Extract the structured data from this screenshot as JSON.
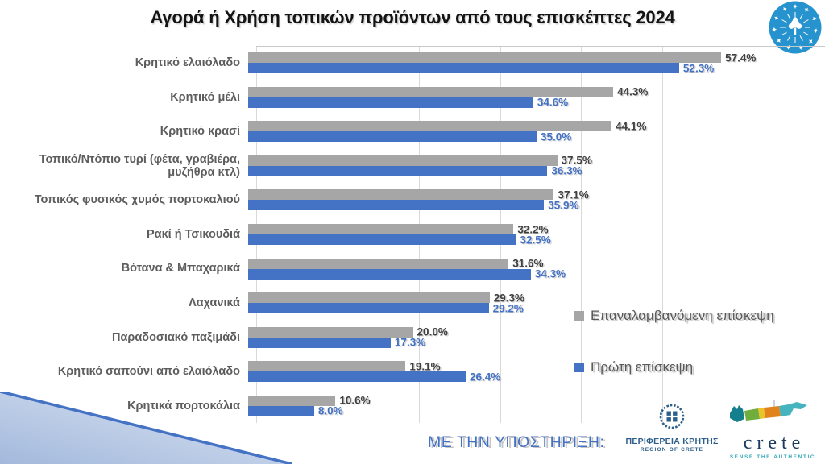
{
  "title": "Αγορά ή Χρήση τοπικών προϊόντων από τους επισκέπτες 2024",
  "chart_data": {
    "type": "bar",
    "orientation": "horizontal",
    "title": "Αγορά ή Χρήση τοπικών προϊόντων από τους επισκέπτες 2024",
    "categories": [
      "Κρητικό ελαιόλαδο",
      "Κρητικό μέλι",
      "Κρητικό κρασί",
      "Τοπικό/Ντόπιο τυρί (φέτα, γραβιέρα, μυζήθρα κτλ)",
      "Τοπικός φυσικός χυμός πορτοκαλιού",
      "Ρακί ή Τσικουδιά",
      "Βότανα & Μπαχαρικά",
      "Λαχανικά",
      "Παραδοσιακό παξιμάδι",
      "Κρητικό σαπούνι από ελαιόλαδο",
      "Κρητικά πορτοκάλια"
    ],
    "series": [
      {
        "name": "Επαναλαμβανόμενη επίσκεψη",
        "color": "#a6a6a6",
        "label_color": "#3f3f3f",
        "values": [
          57.4,
          44.3,
          44.1,
          37.5,
          37.1,
          32.2,
          31.6,
          29.3,
          20.0,
          19.1,
          10.6
        ],
        "labels": [
          "57.4%",
          "44.3%",
          "44.1%",
          "37.5%",
          "37.1%",
          "32.2%",
          "31.6%",
          "29.3%",
          "20.0%",
          "19.1%",
          "10.6%"
        ]
      },
      {
        "name": "Πρώτη επίσκεψη",
        "color": "#4472c4",
        "label_color": "#4472c4",
        "values": [
          52.3,
          34.6,
          35.0,
          36.3,
          35.9,
          32.5,
          34.3,
          29.2,
          17.3,
          26.4,
          8.0
        ],
        "labels": [
          "52.3%",
          "34.6%",
          "35.0%",
          "36.3%",
          "35.9%",
          "32.5%",
          "34.3%",
          "29.2%",
          "17.3%",
          "26.4%",
          "8.0%"
        ]
      }
    ],
    "xlim": [
      0,
      70
    ],
    "gridline_step_percent": 10,
    "grid": "vertical",
    "legend_position": "right-middle",
    "value_labels": "outside-end"
  },
  "legend": {
    "items": [
      {
        "label": "Επαναλαμβανόμενη επίσκεψη",
        "color": "#a6a6a6"
      },
      {
        "label": "Πρώτη επίσκεψη",
        "color": "#4472c4"
      }
    ]
  },
  "footer": {
    "support_label": "ΜΕ ΤΗΝ ΥΠΟΣΤΗΡΙΞΗ:",
    "region_logo": {
      "title": "ΠΕΡΙΦΕΡΕΙΑ ΚΡΗΤΗΣ",
      "subtitle": "REGION OF CRETE"
    },
    "crete_logo": {
      "title": "crete",
      "subtitle": "SENSE THE AUTHENTIC"
    }
  },
  "icons": {
    "top_right": "tree-and-stars-circle-logo",
    "region_emblem": "wreath-cross-emblem",
    "crete_island": "crete-island-map",
    "corner": "blue-gradient-triangle"
  },
  "colors": {
    "bar_gray": "#a6a6a6",
    "bar_blue": "#4472c4",
    "gridline": "#d9d9d9",
    "category_label": "#5d5d5d",
    "legend_text": "#595959",
    "support_text": "#4472c4",
    "title_text": "#141414"
  }
}
